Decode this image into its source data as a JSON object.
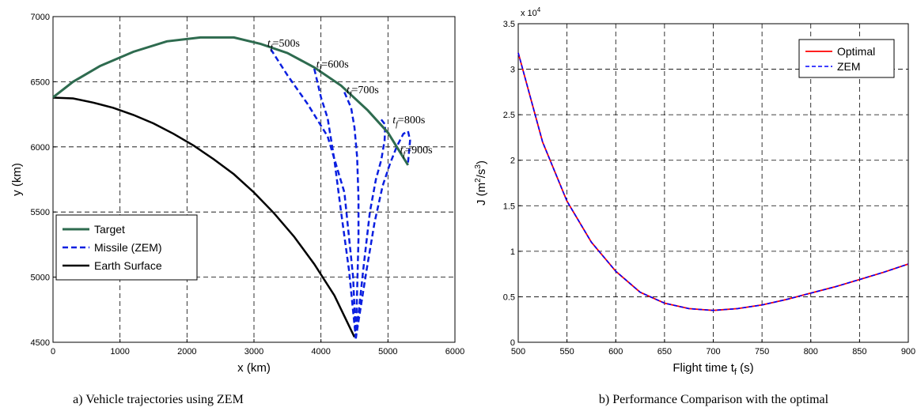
{
  "chart_data": [
    {
      "type": "line",
      "caption": "a) Vehicle trajectories using ZEM",
      "xlabel": "x (km)",
      "ylabel": "y (km)",
      "xlim": [
        0,
        6000
      ],
      "ylim": [
        4500,
        7000
      ],
      "xticks": [
        "0",
        "1000",
        "2000",
        "3000",
        "4000",
        "5000",
        "6000"
      ],
      "yticks": [
        "4500",
        "5000",
        "5500",
        "6000",
        "6500",
        "7000"
      ],
      "grid": true,
      "legend_position": "bottom-left",
      "legend": [
        "Target",
        "Missile (ZEM)",
        "Earth Surface"
      ],
      "colors": {
        "target": "#2e6b4f",
        "missile": "#0a1fe0",
        "earth": "#000000"
      },
      "series": [
        {
          "name": "Target",
          "x": [
            0,
            300,
            700,
            1200,
            1700,
            2200,
            2700,
            3100,
            3500,
            3900,
            4300,
            4700,
            5000,
            5300
          ],
          "y": [
            6380,
            6500,
            6620,
            6730,
            6810,
            6840,
            6840,
            6790,
            6720,
            6610,
            6470,
            6280,
            6110,
            5860
          ]
        },
        {
          "name": "Missile (ZEM)",
          "paths": [
            {
              "x": [
                3250,
                3500,
                3800,
                4100,
                4350,
                4480,
                4520
              ],
              "y": [
                6750,
                6550,
                6330,
                6080,
                5650,
                5000,
                4530
              ]
            },
            {
              "x": [
                3900,
                4000,
                4100,
                4200,
                4300,
                4420,
                4520
              ],
              "y": [
                6600,
                6380,
                6220,
                5900,
                5500,
                5050,
                4530
              ]
            },
            {
              "x": [
                4350,
                4450,
                4500,
                4540,
                4560,
                4560,
                4540,
                4520
              ],
              "y": [
                6420,
                6300,
                6150,
                5920,
                5600,
                5300,
                4900,
                4530
              ]
            },
            {
              "x": [
                4900,
                4960,
                4950,
                4900,
                4820,
                4730,
                4640,
                4520
              ],
              "y": [
                6210,
                6170,
                6050,
                5900,
                5750,
                5500,
                5100,
                4530
              ]
            },
            {
              "x": [
                5300,
                5330,
                5300,
                5230,
                5130,
                5030,
                4920,
                4800,
                4680,
                4520
              ],
              "y": [
                5880,
                6050,
                6120,
                6100,
                6000,
                5870,
                5700,
                5420,
                5050,
                4530
              ]
            }
          ]
        },
        {
          "name": "Earth Surface",
          "x": [
            0,
            300,
            600,
            900,
            1200,
            1500,
            1800,
            2100,
            2400,
            2700,
            3000,
            3300,
            3600,
            3900,
            4200,
            4500
          ],
          "y": [
            6378,
            6372,
            6340,
            6300,
            6245,
            6180,
            6100,
            6010,
            5905,
            5790,
            5650,
            5490,
            5310,
            5100,
            4860,
            4540
          ]
        }
      ],
      "annotations": [
        {
          "label": "t",
          "sub": "f",
          "rest": "=500s",
          "x": 3200,
          "y": 6770
        },
        {
          "label": "t",
          "sub": "f",
          "rest": "=600s",
          "x": 3930,
          "y": 6610
        },
        {
          "label": "t",
          "sub": "f",
          "rest": "=700s",
          "x": 4380,
          "y": 6410
        },
        {
          "label": "t",
          "sub": "f",
          "rest": "=800s",
          "x": 5070,
          "y": 6180
        },
        {
          "label": "t",
          "sub": "f",
          "rest": "=900s",
          "x": 5180,
          "y": 5950
        }
      ]
    },
    {
      "type": "line",
      "caption": "b) Performance Comparison with the optimal",
      "xlabel": "Flight time t",
      "xlabel_sub": "f",
      "xlabel_rest": " (s)",
      "ylabel": "J (m",
      "ylabel_sup1": "2",
      "ylabel_mid": "/s",
      "ylabel_sup2": "3",
      "ylabel_end": ")",
      "y_multiplier": "x 10",
      "y_multiplier_exp": "4",
      "xlim": [
        500,
        900
      ],
      "ylim": [
        0,
        3.5
      ],
      "xticks": [
        "500",
        "550",
        "600",
        "650",
        "700",
        "750",
        "800",
        "850",
        "900"
      ],
      "yticks": [
        "0",
        "0.5",
        "1",
        "1.5",
        "2",
        "2.5",
        "3",
        "3.5"
      ],
      "grid": true,
      "legend_position": "top-right",
      "legend": [
        "Optimal",
        "ZEM"
      ],
      "colors": {
        "optimal": "#ff0000",
        "zem": "#0000ff"
      },
      "x": [
        500,
        525,
        550,
        575,
        600,
        625,
        650,
        675,
        700,
        725,
        750,
        775,
        800,
        825,
        850,
        875,
        900
      ],
      "series": [
        {
          "name": "Optimal",
          "values": [
            3.18,
            2.2,
            1.55,
            1.1,
            0.78,
            0.55,
            0.43,
            0.37,
            0.35,
            0.37,
            0.41,
            0.47,
            0.54,
            0.61,
            0.69,
            0.77,
            0.86
          ]
        },
        {
          "name": "ZEM",
          "values": [
            3.18,
            2.2,
            1.55,
            1.1,
            0.78,
            0.55,
            0.43,
            0.37,
            0.35,
            0.37,
            0.41,
            0.47,
            0.54,
            0.61,
            0.69,
            0.77,
            0.86
          ]
        }
      ]
    }
  ]
}
